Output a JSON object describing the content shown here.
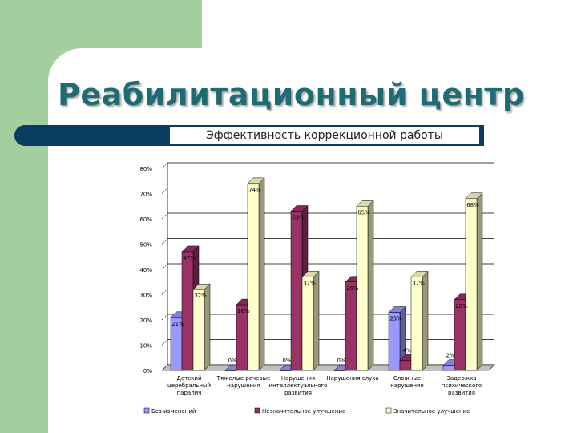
{
  "slide": {
    "title": "Реабилитационный центр",
    "subtitle": "Эффективность коррекционной работы"
  },
  "colors": {
    "background_block": "#a3cf9e",
    "title": "#1f6b73",
    "band": "#0a3d62"
  },
  "chart_data": {
    "type": "bar",
    "title": "",
    "xlabel": "",
    "ylabel": "",
    "ylim": [
      0,
      80
    ],
    "yticks": [
      "0%",
      "10%",
      "20%",
      "30%",
      "40%",
      "50%",
      "60%",
      "70%",
      "80%"
    ],
    "grid": true,
    "legend_position": "bottom",
    "categories": [
      [
        "Детский",
        "церебральный",
        "паралич"
      ],
      [
        "Тяжелые речевые",
        "нарушения"
      ],
      [
        "Нарушения",
        "интеллектуального",
        "развития"
      ],
      [
        "Нарушения слуха"
      ],
      [
        "Сложные",
        "нарушения"
      ],
      [
        "Задержка",
        "психического",
        "развития"
      ]
    ],
    "series": [
      {
        "name": "Без изменений",
        "color": "#9999ff",
        "values": [
          21,
          0,
          0,
          0,
          23,
          2
        ],
        "labels": [
          "21%",
          "0%",
          "0%",
          "0%",
          "23%",
          "2%"
        ]
      },
      {
        "name": "Незначительное улучшение",
        "color": "#993366",
        "values": [
          47,
          26,
          63,
          35,
          4,
          28
        ],
        "labels": [
          "47%",
          "26%",
          "63%",
          "35%",
          "4%",
          "28%"
        ]
      },
      {
        "name": "Значительное улучшение",
        "color": "#ffffcc",
        "values": [
          32,
          74,
          37,
          65,
          37,
          68
        ],
        "labels": [
          "32%",
          "74%",
          "37%",
          "65%",
          "37%",
          "68%"
        ]
      }
    ]
  }
}
